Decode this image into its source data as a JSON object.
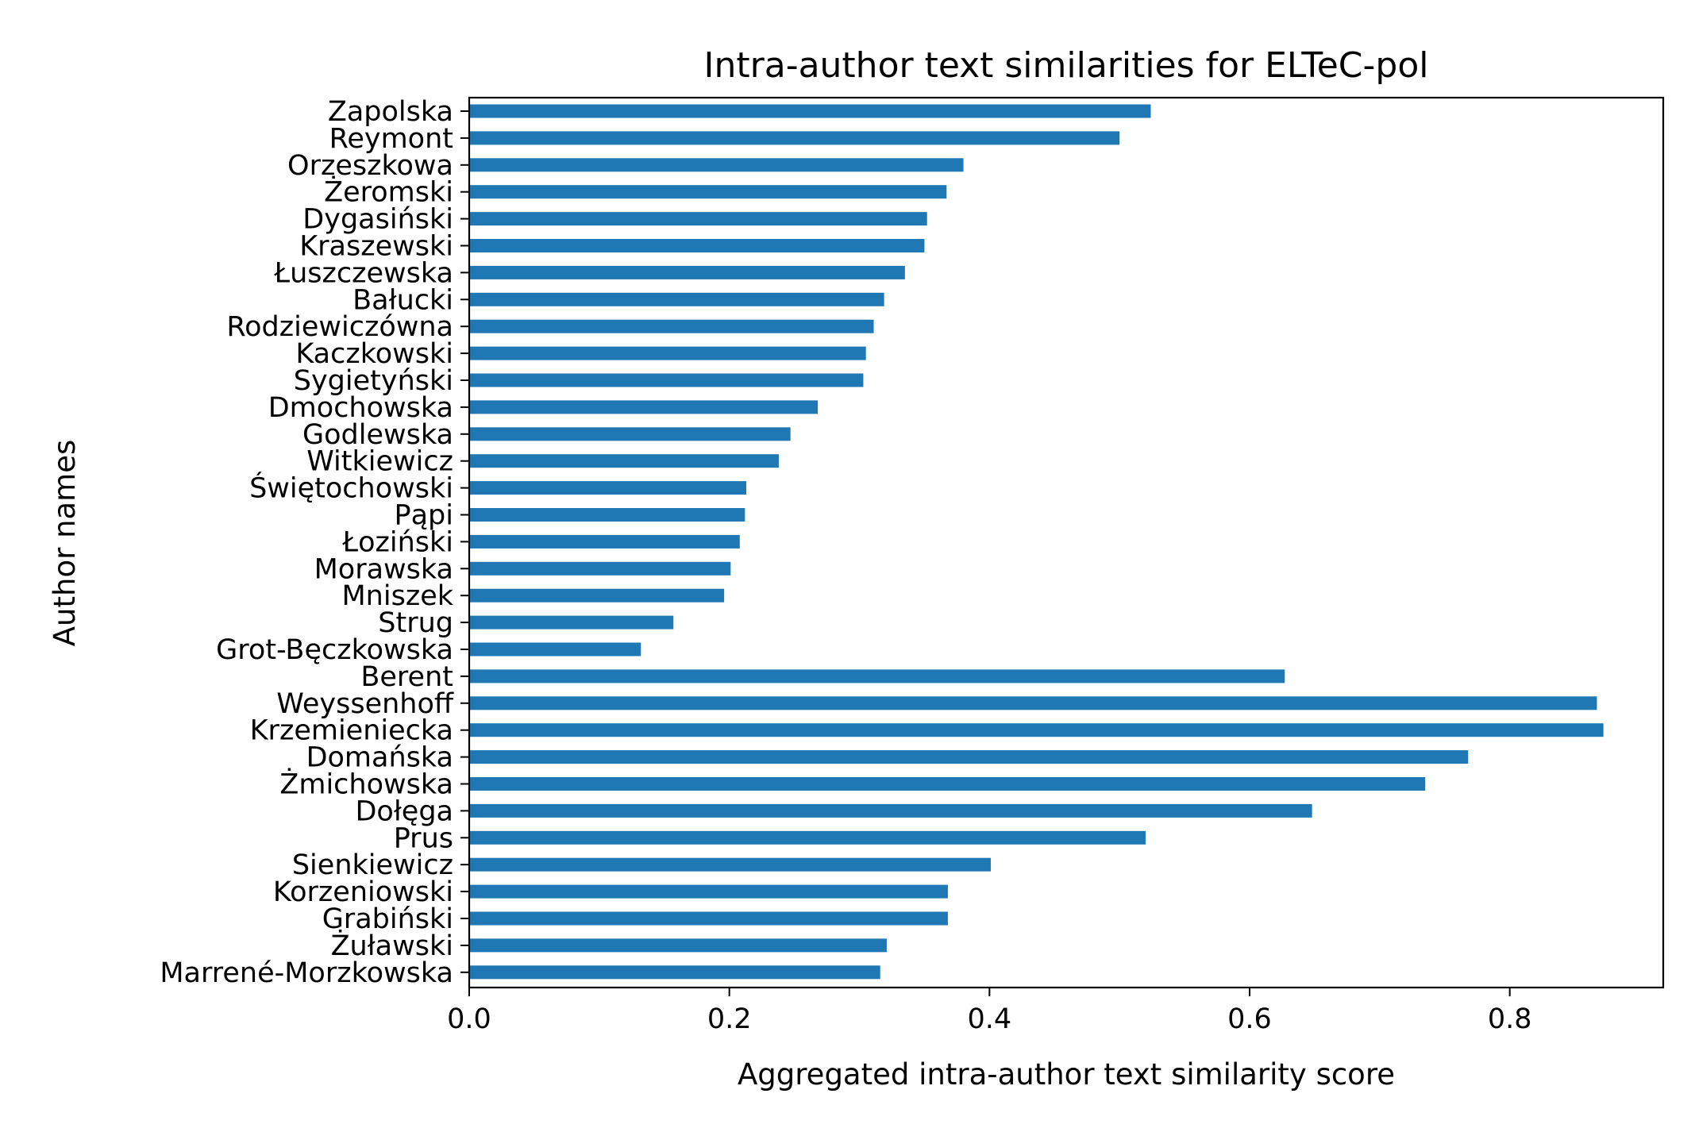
{
  "chart_data": {
    "type": "bar",
    "orientation": "horizontal",
    "title": "Intra-author text similarities for ELTeC-pol",
    "xlabel": "Aggregated intra-author text similarity score",
    "ylabel": "Author names",
    "xlim": [
      0.0,
      0.918
    ],
    "xticks": [
      0.0,
      0.2,
      0.4,
      0.6,
      0.8
    ],
    "xtick_labels": [
      "0.0",
      "0.2",
      "0.4",
      "0.6",
      "0.8"
    ],
    "grid": false,
    "legend": "none",
    "bar_color": "#1f77b4",
    "categories": [
      "Zapolska",
      "Reymont",
      "Orzeszkowa",
      "Żeromski",
      "Dygasiński",
      "Kraszewski",
      "Łuszczewska",
      "Bałucki",
      "Rodziewiczówna",
      "Kaczkowski",
      "Sygietyński",
      "Dmochowska",
      "Godlewska",
      "Witkiewicz",
      "Świętochowski",
      "Pąpi",
      "Łoziński",
      "Morawska",
      "Mniszek",
      "Strug",
      "Grot-Bęczkowska",
      "Berent",
      "Weyssenhoff",
      "Krzemieniecka",
      "Domańska",
      "Żmichowska",
      "Dołęga",
      "Prus",
      "Sienkiewicz",
      "Korzeniowski",
      "Grabiński",
      "Żuławski",
      "Marrené-Morzkowska"
    ],
    "values": [
      0.524,
      0.5,
      0.38,
      0.367,
      0.352,
      0.35,
      0.335,
      0.319,
      0.311,
      0.305,
      0.303,
      0.268,
      0.247,
      0.238,
      0.213,
      0.212,
      0.208,
      0.201,
      0.196,
      0.157,
      0.132,
      0.627,
      0.867,
      0.872,
      0.768,
      0.735,
      0.648,
      0.52,
      0.401,
      0.368,
      0.368,
      0.321,
      0.316
    ]
  }
}
